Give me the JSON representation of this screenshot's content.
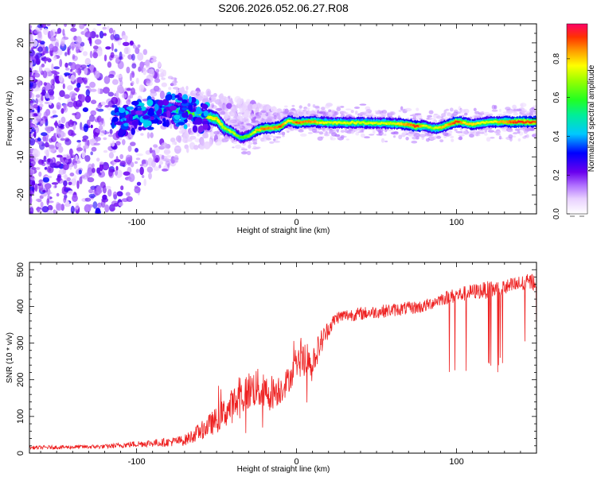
{
  "chart_data": [
    {
      "type": "heatmap",
      "title": "S206.2026.052.06.27.R08",
      "xlabel": "Height of straight line (km)",
      "ylabel": "Frequency (Hz)",
      "xlim": [
        -167,
        150
      ],
      "ylim": [
        -25,
        25
      ],
      "x_ticks": [
        -100,
        0,
        100
      ],
      "y_ticks": [
        -20,
        -10,
        0,
        10,
        20
      ],
      "colorbar": {
        "label": "Normalized spectral amplitude",
        "range": [
          0,
          0.98
        ],
        "ticks": [
          0.0,
          0.2,
          0.4,
          0.6,
          0.8
        ],
        "colormap": [
          "#ffffff",
          "#cc88ff",
          "#7700ee",
          "#0000ff",
          "#00ccff",
          "#00ff44",
          "#ffff00",
          "#ff6600",
          "#ff0055"
        ]
      },
      "ridge": {
        "x": [
          -167,
          -120,
          -100,
          -80,
          -70,
          -60,
          -50,
          -45,
          -40,
          -35,
          -30,
          -25,
          -20,
          -15,
          -10,
          -5,
          0,
          10,
          20,
          40,
          60,
          70,
          75,
          80,
          85,
          90,
          95,
          100,
          105,
          110,
          120,
          130,
          140,
          150
        ],
        "freq": [
          0,
          -1,
          0.5,
          2.5,
          2.0,
          0.8,
          0.0,
          -2.5,
          -3.5,
          -5.0,
          -4.5,
          -3.0,
          -2.5,
          -2.5,
          -2.0,
          -0.5,
          -1.0,
          -0.7,
          -1.0,
          -1.0,
          -1.2,
          -1.5,
          -2.0,
          -1.8,
          -2.5,
          -2.3,
          -1.5,
          -0.8,
          -1.0,
          -1.5,
          -0.8,
          -0.8,
          -0.8,
          -0.8
        ],
        "amplitude": [
          0.15,
          0.3,
          0.45,
          0.55,
          0.6,
          0.7,
          0.8,
          0.7,
          0.75,
          0.6,
          0.65,
          0.8,
          0.9,
          0.85,
          0.9,
          0.75,
          0.9,
          0.85,
          0.75,
          0.75,
          0.75,
          0.85,
          0.95,
          0.75,
          0.7,
          0.8,
          0.85,
          0.95,
          0.8,
          0.8,
          0.75,
          0.85,
          0.95,
          0.9
        ]
      }
    },
    {
      "type": "line",
      "xlabel": "Height of straight line (km)",
      "ylabel": "SNR (10 * v/v)",
      "xlim": [
        -167,
        150
      ],
      "ylim": [
        0,
        520
      ],
      "x_ticks": [
        -100,
        0,
        100
      ],
      "y_ticks": [
        0,
        100,
        200,
        300,
        400,
        500
      ],
      "color": "#ee2222",
      "envelope": {
        "x": [
          -167,
          -120,
          -100,
          -80,
          -70,
          -60,
          -50,
          -45,
          -40,
          -35,
          -30,
          -25,
          -20,
          -10,
          -5,
          0,
          5,
          10,
          15,
          20,
          25,
          30,
          40,
          60,
          80,
          90,
          100,
          110,
          120,
          130,
          140,
          150
        ],
        "mean": [
          15,
          18,
          25,
          30,
          35,
          60,
          90,
          110,
          130,
          150,
          170,
          180,
          160,
          175,
          200,
          240,
          260,
          250,
          300,
          340,
          370,
          375,
          380,
          390,
          400,
          420,
          430,
          440,
          445,
          450,
          460,
          470
        ],
        "spread": [
          8,
          10,
          15,
          20,
          25,
          40,
          60,
          70,
          80,
          90,
          90,
          90,
          90,
          70,
          60,
          60,
          80,
          70,
          60,
          40,
          30,
          30,
          30,
          30,
          30,
          30,
          35,
          35,
          40,
          40,
          40,
          40
        ]
      }
    }
  ]
}
